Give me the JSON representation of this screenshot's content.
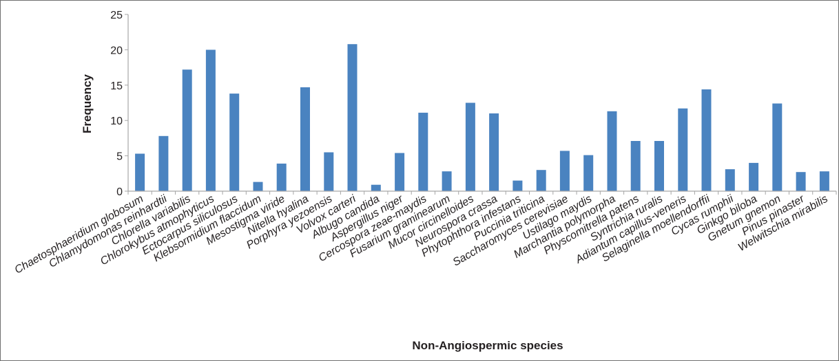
{
  "chart_data": {
    "type": "bar",
    "xlabel": "Non-Angiospermic species",
    "ylabel": "Frequency",
    "ylim": [
      0,
      25
    ],
    "yticks": [
      0,
      5,
      10,
      15,
      20,
      25
    ],
    "grid": false,
    "bar_color": "#4a83c0",
    "axis_color": "#a6a6a6",
    "categories": [
      "Chaetosphaeridium globosum",
      "Chlamydomonas reinhardtii",
      "Chlorella variabilis",
      "Chlorokybus atmophyticus",
      "Ectocarpus siliculosus",
      "Klebsormidium flaccidum",
      "Mesostigma viride",
      "Nitella hyalina",
      "Porphyra yezoensis",
      "Volvox carteri",
      "Albugo candida",
      "Aspergillus niger",
      "Cercospora zeae-maydis",
      "Fusarium graminearum",
      "Mucor circinelloides",
      "Neurospora crassa",
      "Phytophthora infestans",
      "Puccinia triticina",
      "Saccharomyces cerevisiae",
      "Ustilago maydis",
      "Marchantia polymorpha",
      "Physcomitrella patens",
      "Syntrichia ruralis",
      "Adiantum capillus-veneris",
      "Selaginella moellendorffii",
      "Cycas rumphii",
      "Ginkgo biloba",
      "Gnetum gnemon",
      "Pinus pinaster",
      "Welwitschia mirabilis"
    ],
    "values": [
      5.3,
      7.8,
      17.2,
      20.0,
      13.8,
      1.3,
      3.9,
      14.7,
      5.5,
      20.8,
      0.9,
      5.4,
      11.1,
      2.8,
      12.5,
      11.0,
      1.5,
      3.0,
      5.7,
      5.1,
      11.3,
      7.1,
      7.1,
      11.7,
      14.4,
      3.1,
      4.0,
      12.4,
      2.7,
      2.8
    ]
  }
}
